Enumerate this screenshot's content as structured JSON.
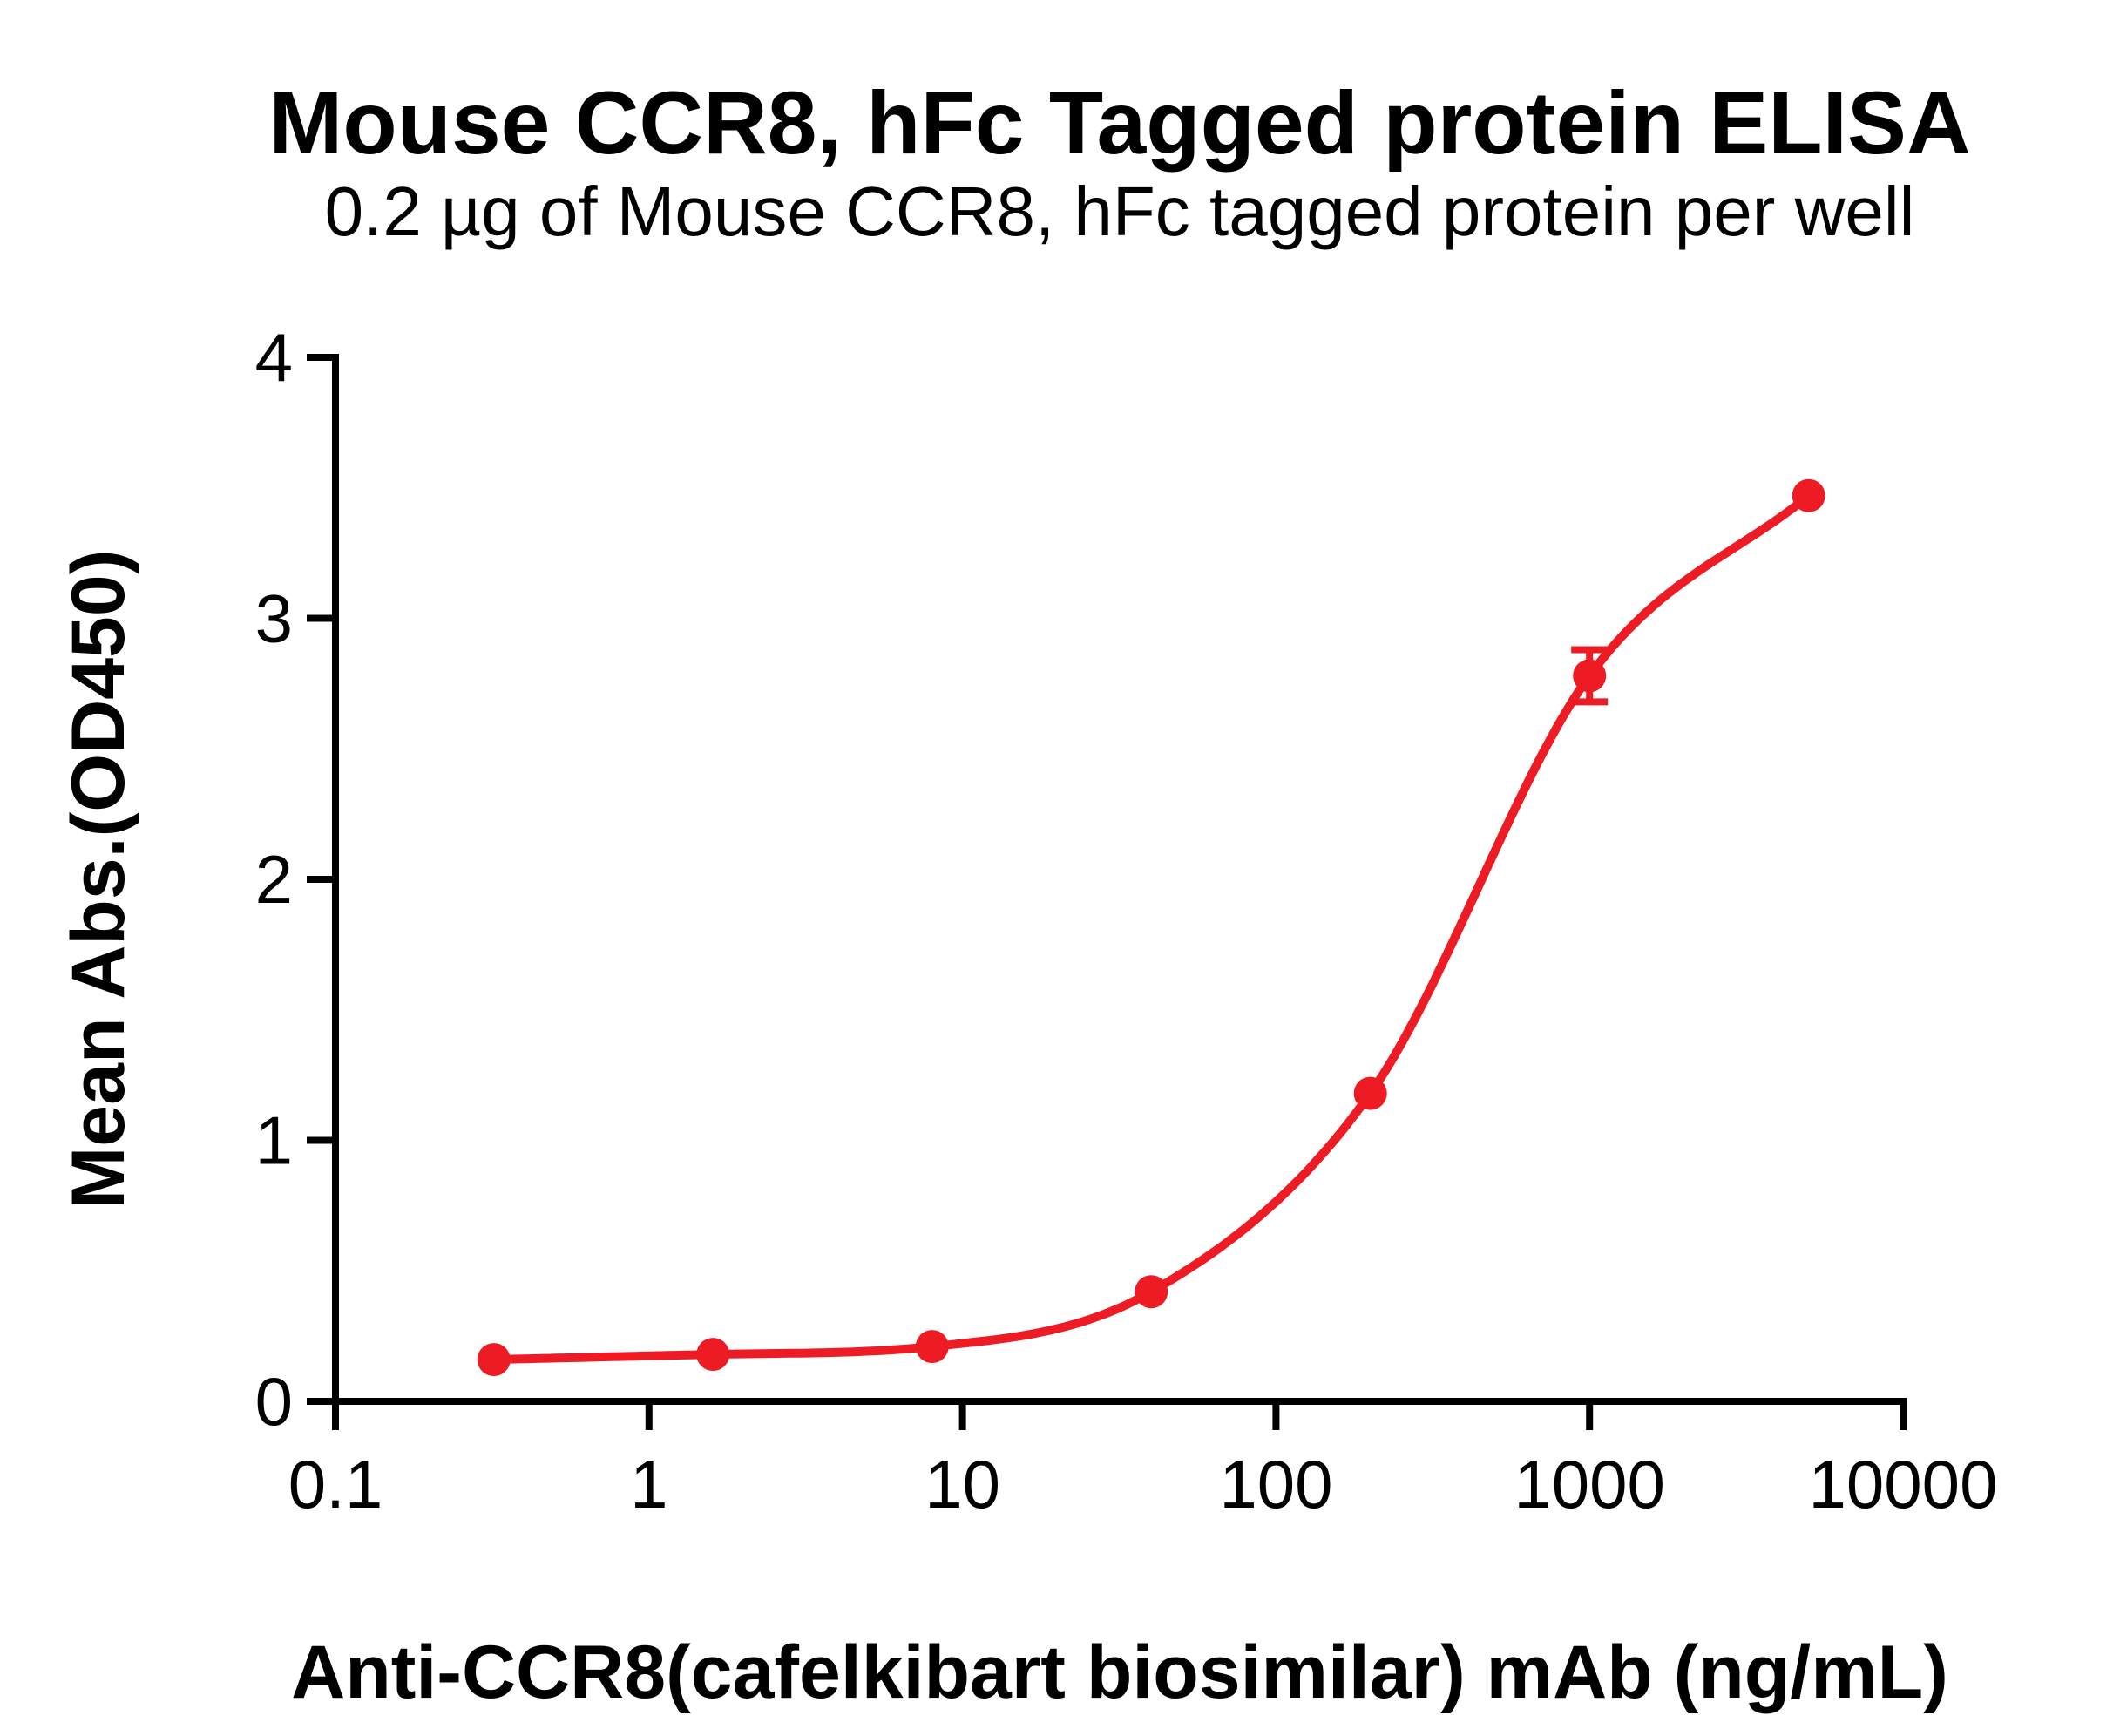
{
  "figure": {
    "background_color": "#FFFFFF",
    "text_color": "#000000",
    "axis_color": "#000000",
    "accent_color": "#ED1C24"
  },
  "chart_data": {
    "type": "line",
    "title": "Mouse CCR8, hFc Tagged protein ELISA",
    "subtitle": "0.2 µg of Mouse CCR8, hFc tagged protein per well",
    "xlabel": "Anti-CCR8(cafelkibart biosimilar) mAb (ng/mL)",
    "ylabel": "Mean Abs.(OD450)",
    "x_scale": "log10",
    "xlim": [
      0.1,
      10000
    ],
    "ylim": [
      0,
      4
    ],
    "x_ticks": [
      0.1,
      1,
      10,
      100,
      1000,
      10000
    ],
    "x_tick_labels": [
      "0.1",
      "1",
      "10",
      "100",
      "1000",
      "10000"
    ],
    "y_ticks": [
      0,
      1,
      2,
      3,
      4
    ],
    "y_tick_labels": [
      "0",
      "1",
      "2",
      "3",
      "4"
    ],
    "grid": false,
    "legend": "none",
    "series": [
      {
        "name": "Anti-CCR8(cafelkibart biosimilar) mAb",
        "color": "#ED1C24",
        "marker": "circle",
        "line": "sigmoid-fit",
        "x": [
          0.32,
          1.6,
          8,
          40,
          200,
          1000,
          5000
        ],
        "y": [
          0.16,
          0.18,
          0.21,
          0.42,
          1.18,
          2.78,
          3.47
        ],
        "y_err": [
          0,
          0,
          0,
          0,
          0,
          0.1,
          0
        ]
      }
    ]
  }
}
